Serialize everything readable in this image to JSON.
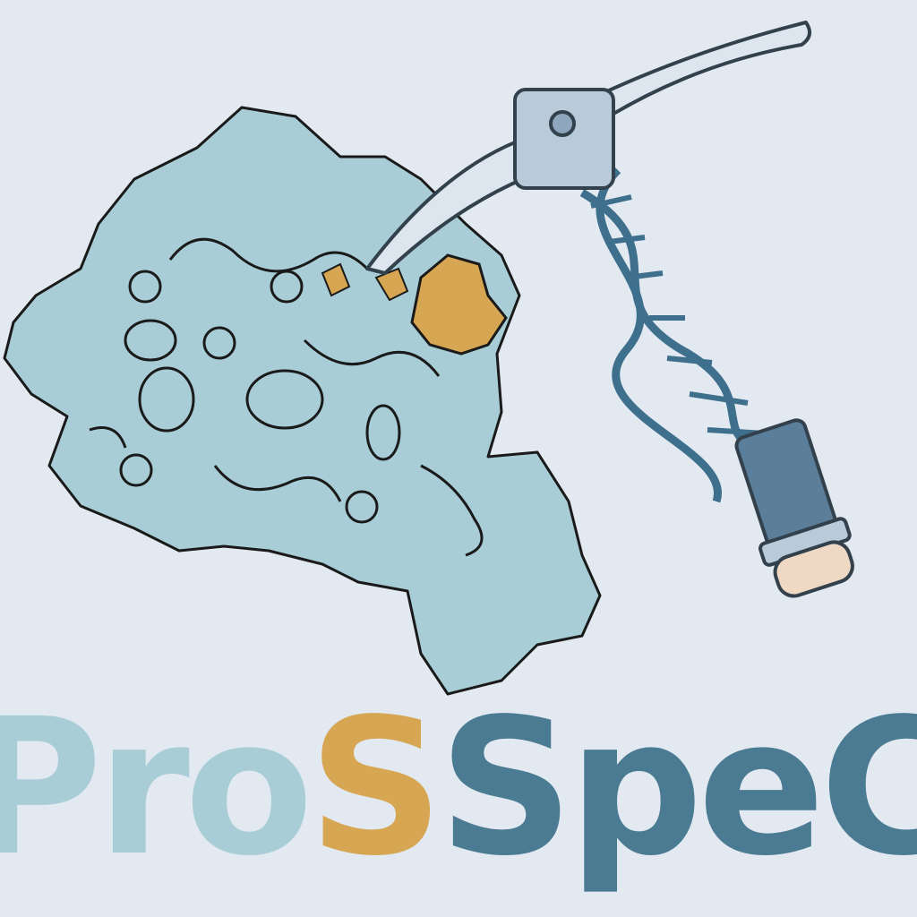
{
  "brand": {
    "wordmark_parts": [
      "Pro",
      "S",
      "SpeC"
    ],
    "colors": {
      "background": "#e2e9f1",
      "protein": "#a8cdd6",
      "highlight": "#d7a652",
      "dark": "#4b7b93",
      "dna": "#3e6f8c",
      "metal": "#b9cad9",
      "wood": "#f0d9c4"
    }
  },
  "illustration": {
    "protein_icon": "protein-surface-icon",
    "pickaxe_icon": "pickaxe-icon",
    "dna_icon": "dna-helix-icon"
  }
}
